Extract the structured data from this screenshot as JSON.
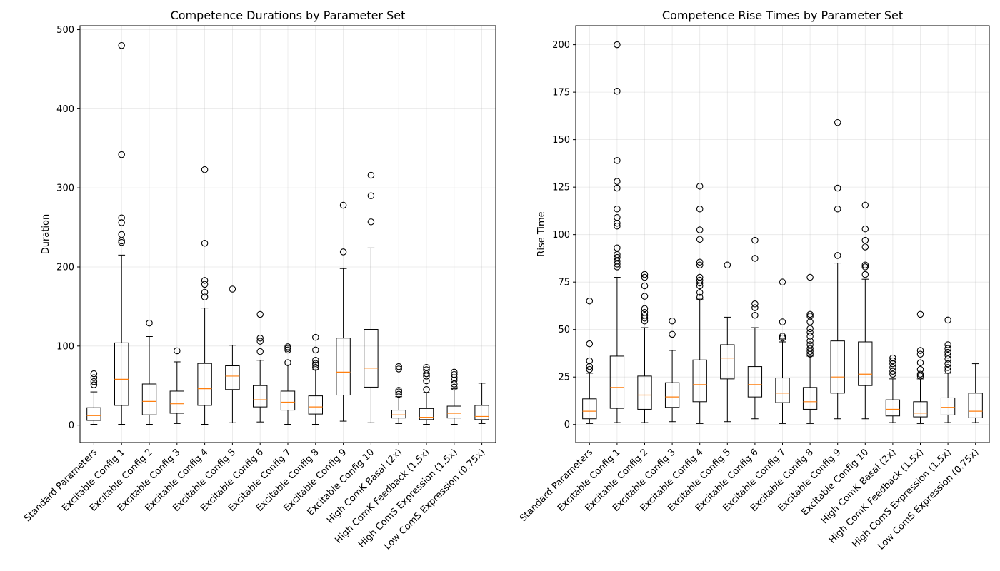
{
  "chart_data": [
    {
      "type": "box",
      "title": "Competence Durations by Parameter Set",
      "xlabel": "",
      "ylabel": "Duration",
      "ylim": [
        -22,
        505
      ],
      "yticks": [
        0,
        100,
        200,
        300,
        400,
        500
      ],
      "grid": true,
      "categories": [
        "Standard Parameters",
        "Excitable Config 1",
        "Excitable Config 2",
        "Excitable Config 3",
        "Excitable Config 4",
        "Excitable Config 5",
        "Excitable Config 6",
        "Excitable Config 7",
        "Excitable Config 8",
        "Excitable Config 9",
        "Excitable Config 10",
        "High ComK Basal (2x)",
        "High ComK Feedback (1.5x)",
        "High ComS Expression (1.5x)",
        "Low ComS Expression (0.75x)"
      ],
      "boxes": [
        {
          "whislo": 1,
          "q1": 6,
          "med": 12,
          "q3": 22,
          "whishi": 42,
          "fliers": [
            51,
            55,
            60,
            65
          ]
        },
        {
          "whislo": 1,
          "q1": 25,
          "med": 58,
          "q3": 104,
          "whishi": 215,
          "fliers": [
            231,
            233,
            241,
            256,
            262,
            342,
            480
          ]
        },
        {
          "whislo": 1,
          "q1": 13,
          "med": 30,
          "q3": 52,
          "whishi": 112,
          "fliers": [
            129
          ]
        },
        {
          "whislo": 2,
          "q1": 15,
          "med": 27,
          "q3": 43,
          "whishi": 80,
          "fliers": [
            94
          ]
        },
        {
          "whislo": 1,
          "q1": 25,
          "med": 46,
          "q3": 78,
          "whishi": 148,
          "fliers": [
            162,
            168,
            178,
            183,
            230,
            323
          ]
        },
        {
          "whislo": 3,
          "q1": 45,
          "med": 62,
          "q3": 75,
          "whishi": 101,
          "fliers": [
            172
          ]
        },
        {
          "whislo": 4,
          "q1": 23,
          "med": 32,
          "q3": 50,
          "whishi": 82,
          "fliers": [
            93,
            106,
            110,
            140
          ]
        },
        {
          "whislo": 1,
          "q1": 19,
          "med": 29,
          "q3": 43,
          "whishi": 76,
          "fliers": [
            79,
            95,
            97,
            99
          ]
        },
        {
          "whislo": 1,
          "q1": 14,
          "med": 23,
          "q3": 37,
          "whishi": 70,
          "fliers": [
            73,
            76,
            78,
            82,
            95,
            111
          ]
        },
        {
          "whislo": 5,
          "q1": 38,
          "med": 67,
          "q3": 110,
          "whishi": 198,
          "fliers": [
            219,
            278
          ]
        },
        {
          "whislo": 3,
          "q1": 48,
          "med": 72,
          "q3": 121,
          "whishi": 224,
          "fliers": [
            257,
            290,
            316
          ]
        },
        {
          "whislo": 2,
          "q1": 9,
          "med": 13,
          "q3": 19,
          "whishi": 36,
          "fliers": [
            39,
            42,
            44,
            71,
            74
          ]
        },
        {
          "whislo": 1,
          "q1": 7,
          "med": 10,
          "q3": 21,
          "whishi": 41,
          "fliers": [
            45,
            56,
            62,
            65,
            70,
            73
          ]
        },
        {
          "whislo": 1,
          "q1": 9,
          "med": 15,
          "q3": 24,
          "whishi": 46,
          "fliers": [
            48,
            52,
            57,
            60,
            64,
            67
          ]
        },
        {
          "whislo": 2,
          "q1": 7,
          "med": 11,
          "q3": 25,
          "whishi": 53,
          "fliers": []
        }
      ]
    },
    {
      "type": "box",
      "title": "Competence Rise Times by Parameter Set",
      "xlabel": "",
      "ylabel": "Rise Time",
      "ylim": [
        -9.5,
        210
      ],
      "yticks": [
        0,
        25,
        50,
        75,
        100,
        125,
        150,
        175,
        200
      ],
      "grid": true,
      "categories": [
        "Standard Parameters",
        "Excitable Config 1",
        "Excitable Config 2",
        "Excitable Config 3",
        "Excitable Config 4",
        "Excitable Config 5",
        "Excitable Config 6",
        "Excitable Config 7",
        "Excitable Config 8",
        "Excitable Config 9",
        "Excitable Config 10",
        "High ComK Basal (2x)",
        "High ComK Feedback (1.5x)",
        "High ComS Expression (1.5x)",
        "Low ComS Expression (0.75x)"
      ],
      "boxes": [
        {
          "whislo": 0.5,
          "q1": 3,
          "med": 7,
          "q3": 13.5,
          "whishi": 27,
          "fliers": [
            29,
            30.5,
            33.5,
            42.5,
            65
          ]
        },
        {
          "whislo": 1,
          "q1": 8.5,
          "med": 19.5,
          "q3": 36,
          "whishi": 77.5,
          "fliers": [
            83,
            84.5,
            86,
            88,
            89.5,
            93,
            104.5,
            106,
            109,
            113.5,
            124.5,
            128,
            139,
            175.5,
            200
          ]
        },
        {
          "whislo": 1,
          "q1": 8,
          "med": 15.5,
          "q3": 25.5,
          "whishi": 51,
          "fliers": [
            54.5,
            56,
            57.5,
            59,
            61,
            67.5,
            73,
            77.5,
            79
          ]
        },
        {
          "whislo": 1.5,
          "q1": 9,
          "med": 14.5,
          "q3": 22,
          "whishi": 39,
          "fliers": [
            47.5,
            54.5
          ]
        },
        {
          "whislo": 0.5,
          "q1": 12,
          "med": 21,
          "q3": 34,
          "whishi": 66,
          "fliers": [
            67,
            69.5,
            73,
            74.5,
            76,
            77.5,
            84,
            85.5,
            97.5,
            102.5,
            113.5,
            125.5
          ]
        },
        {
          "whislo": 1.5,
          "q1": 24,
          "med": 35,
          "q3": 42,
          "whishi": 56.5,
          "fliers": [
            84
          ]
        },
        {
          "whislo": 3,
          "q1": 14.5,
          "med": 21,
          "q3": 30.5,
          "whishi": 51,
          "fliers": [
            57.5,
            61.5,
            63.5,
            87.5,
            97
          ]
        },
        {
          "whislo": 0.5,
          "q1": 11.5,
          "med": 16.5,
          "q3": 24.5,
          "whishi": 43.5,
          "fliers": [
            45.5,
            46.5,
            54,
            75
          ]
        },
        {
          "whislo": 0.5,
          "q1": 8,
          "med": 12,
          "q3": 19.5,
          "whishi": 36,
          "fliers": [
            37,
            38.5,
            40,
            42,
            44,
            46.5,
            48.5,
            50.5,
            54,
            57,
            58,
            77.5
          ]
        },
        {
          "whislo": 3,
          "q1": 16.5,
          "med": 25,
          "q3": 44,
          "whishi": 85,
          "fliers": [
            89,
            113.5,
            124.5,
            159
          ]
        },
        {
          "whislo": 3,
          "q1": 20.5,
          "med": 26.5,
          "q3": 43.5,
          "whishi": 76.5,
          "fliers": [
            79,
            83,
            84,
            93.5,
            97,
            103,
            115.5
          ]
        },
        {
          "whislo": 1,
          "q1": 4.5,
          "med": 8,
          "q3": 13,
          "whishi": 24,
          "fliers": [
            26.5,
            28,
            30,
            32,
            33.5,
            35
          ]
        },
        {
          "whislo": 0.5,
          "q1": 4,
          "med": 6,
          "q3": 12,
          "whishi": 24,
          "fliers": [
            25.5,
            26.5,
            29,
            32.5,
            37,
            39,
            58
          ]
        },
        {
          "whislo": 1,
          "q1": 5,
          "med": 9,
          "q3": 14,
          "whishi": 27,
          "fliers": [
            28.5,
            30,
            32,
            34.5,
            36.5,
            38,
            40,
            42,
            55
          ]
        },
        {
          "whislo": 1,
          "q1": 3.5,
          "med": 7,
          "q3": 16.5,
          "whishi": 32,
          "fliers": []
        }
      ]
    }
  ]
}
